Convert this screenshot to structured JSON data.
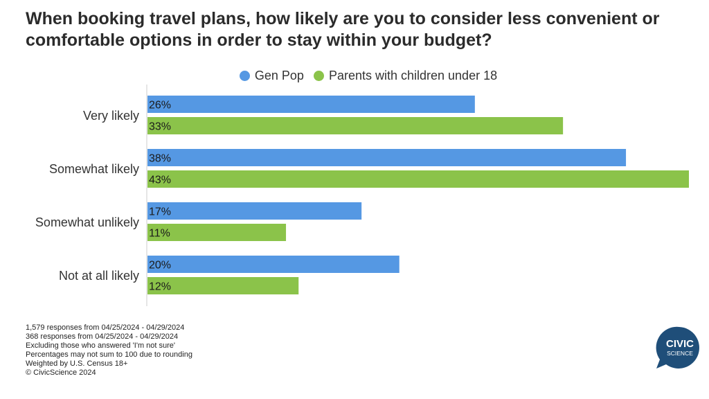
{
  "title_lines": [
    "When booking travel plans, how likely are you to consider less convenient or",
    "comfortable options in order to stay within your budget?"
  ],
  "colors": {
    "gen_pop": "#5598e3",
    "parents": "#8bc34a",
    "axis": "#cccccc",
    "logo": "#1f4e79"
  },
  "chart_data": {
    "type": "bar",
    "orientation": "horizontal",
    "categories": [
      "Very likely",
      "Somewhat likely",
      "Somewhat unlikely",
      "Not at all likely"
    ],
    "series": [
      {
        "name": "Gen Pop",
        "values": [
          26,
          38,
          17,
          20
        ],
        "labels": [
          "26%",
          "38%",
          "17%",
          "20%"
        ]
      },
      {
        "name": "Parents with children under 18",
        "values": [
          33,
          43,
          11,
          12
        ],
        "labels": [
          "33%",
          "43%",
          "11%",
          "12%"
        ]
      }
    ],
    "xlim": [
      0,
      43
    ],
    "legend_position": "top-center",
    "grid": false
  },
  "footnotes": [
    "1,579 responses from 04/25/2024 - 04/29/2024",
    "368 responses from 04/25/2024 - 04/29/2024",
    "Excluding those who answered 'I'm not sure'",
    "Percentages may not sum to 100 due to rounding",
    "Weighted by U.S. Census 18+",
    "© CivicScience 2024"
  ],
  "logo": {
    "line1": "CIVIC",
    "line2": "SCIENCE"
  }
}
